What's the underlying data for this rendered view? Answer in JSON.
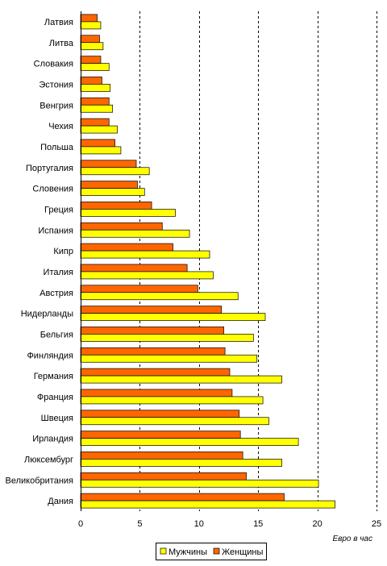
{
  "chart_data": {
    "type": "bar",
    "orientation": "horizontal",
    "categories": [
      "Латвия",
      "Литва",
      "Словакия",
      "Эстония",
      "Венгрия",
      "Чехия",
      "Польша",
      "Португалия",
      "Словения",
      "Греция",
      "Испания",
      "Кипр",
      "Италия",
      "Австрия",
      "Нидерланды",
      "Бельгия",
      "Финляндия",
      "Германия",
      "Франция",
      "Швеция",
      "Ирландия",
      "Люксембург",
      "Великобритания",
      "Дания"
    ],
    "series": [
      {
        "name": "Женщины",
        "color": "#ff6600",
        "values": [
          1.4,
          1.6,
          1.7,
          1.8,
          2.4,
          2.4,
          2.9,
          4.7,
          4.8,
          6.0,
          6.9,
          7.8,
          9.0,
          9.9,
          11.9,
          12.1,
          12.2,
          12.6,
          12.8,
          13.4,
          13.5,
          13.7,
          14.0,
          17.2
        ]
      },
      {
        "name": "Мужчины",
        "color": "#ffff00",
        "values": [
          1.7,
          1.9,
          2.4,
          2.5,
          2.7,
          3.1,
          3.4,
          5.8,
          5.4,
          8.0,
          9.2,
          10.9,
          11.2,
          13.3,
          15.6,
          14.6,
          14.9,
          17.0,
          15.4,
          15.9,
          18.4,
          17.0,
          20.1,
          21.5
        ]
      }
    ],
    "xlim": [
      0,
      25
    ],
    "xticks": [
      "0",
      "5",
      "10",
      "15",
      "20",
      "25"
    ],
    "xlabel": "Евро в час",
    "grid": "vertical-dashed",
    "legend": {
      "placement": "bottom-center",
      "entries": [
        {
          "label": "Мужчины",
          "color": "#ffff00"
        },
        {
          "label": "Женщины",
          "color": "#ff6600"
        }
      ]
    }
  }
}
